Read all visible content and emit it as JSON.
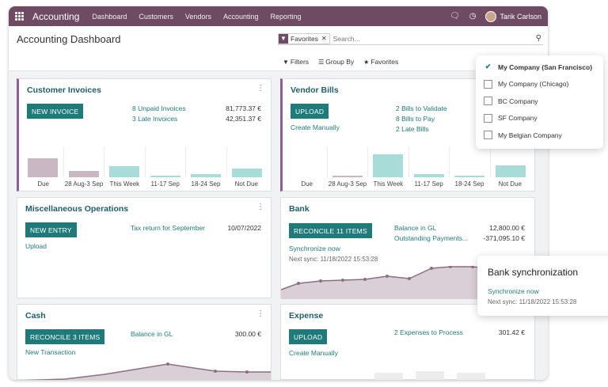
{
  "navbar": {
    "app_name": "Accounting",
    "menu": [
      "Dashboard",
      "Customers",
      "Vendors",
      "Accounting",
      "Reporting"
    ],
    "user": "Tarik Carlson",
    "icons": [
      "apps-grid-icon",
      "chat-icon",
      "clock-icon"
    ]
  },
  "control": {
    "title": "Accounting Dashboard",
    "facet": "Favorites",
    "search_placeholder": "Search...",
    "filters": "Filters",
    "group_by": "Group By",
    "favorites": "Favorites"
  },
  "customer_invoices": {
    "title": "Customer Invoices",
    "button": "NEW INVOICE",
    "links": [
      {
        "label": "8 Unpaid Invoices",
        "amount": "81,773.37 €"
      },
      {
        "label": "3 Late Invoices",
        "amount": "42,351.37 €"
      }
    ],
    "chart": {
      "categories": [
        "Due",
        "28 Aug-3 Sep",
        "This Week",
        "11-17 Sep",
        "18-24 Sep",
        "Not Due"
      ],
      "levels": [
        0.62,
        0.22,
        0.38,
        0.06,
        0.1,
        0.3
      ],
      "colors": [
        "#c9b8c4",
        "#c9b8c4",
        "#a8dcd8",
        "#a8dcd8",
        "#a8dcd8",
        "#a8dcd8"
      ]
    }
  },
  "vendor_bills": {
    "title": "Vendor Bills",
    "button": "UPLOAD",
    "create": "Create Manually",
    "links": [
      "2 Bills to Validate",
      "8 Bills to Pay",
      "2 Late Bills"
    ],
    "chart": {
      "categories": [
        "Due",
        "28 Aug-3 Sep",
        "This Week",
        "11-17 Sep",
        "18-24 Sep",
        "Not Due"
      ],
      "levels": [
        0.0,
        0.06,
        0.75,
        0.1,
        0.04,
        0.4
      ],
      "colors": [
        "#c9b8c4",
        "#c9b8c4",
        "#a8dcd8",
        "#a8dcd8",
        "#a8dcd8",
        "#a8dcd8"
      ]
    }
  },
  "misc": {
    "title": "Miscellaneous Operations",
    "button": "NEW ENTRY",
    "upload": "Upload",
    "tax": "Tax return for September",
    "date": "10/07/2022"
  },
  "bank": {
    "title": "Bank",
    "button": "RECONCILE 11 ITEMS",
    "sync": "Synchronize now",
    "next_sync": "Next sync: 11/18/2022 15:53:28",
    "rows": [
      {
        "label": "Balance in GL",
        "amount": "12,800.00 €"
      },
      {
        "label": "Outstanding Payments...",
        "amount": "-371,095.10 €"
      }
    ]
  },
  "cash": {
    "title": "Cash",
    "button": "RECONCILE 3 ITEMS",
    "new_transaction": "New Transaction",
    "balance_label": "Balance in GL",
    "balance": "300.00 €"
  },
  "expense": {
    "title": "Expense",
    "button": "UPLOAD",
    "create": "Create Manually",
    "to_process": "2 Expenses to Process",
    "amount": "301.42 €"
  },
  "companies": [
    {
      "name": "My Company (San Francisco)",
      "checked": true
    },
    {
      "name": "My Company (Chicago)",
      "checked": false
    },
    {
      "name": "BC Company",
      "checked": false
    },
    {
      "name": "SF Company",
      "checked": false
    },
    {
      "name": "My Belgian Company",
      "checked": false
    }
  ],
  "bank_sync_popup": {
    "title": "Bank synchronization",
    "link": "Synchronize now",
    "next_sync": "Next sync: 11/18/2022 15:53:28"
  },
  "colors": {
    "navbar": "#6f4a63",
    "primary_button": "#1f7a7a",
    "card_title": "#1f5d6b",
    "accent": "#8a5f9a"
  }
}
